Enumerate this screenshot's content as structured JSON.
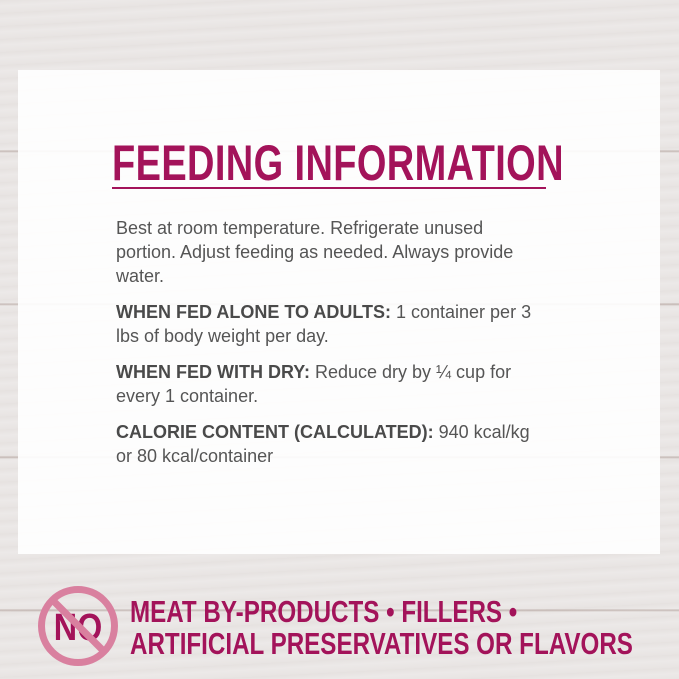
{
  "title": "FEEDING INFORMATION",
  "intro": "Best at room temperature. Refrigerate unused portion. Adjust feeding as needed. Always provide water.",
  "sections": [
    {
      "label": "WHEN FED ALONE TO ADULTS:",
      "text": " 1 container per 3 lbs of body weight per day."
    },
    {
      "label": "WHEN FED WITH DRY:",
      "text": " Reduce dry by ¼ cup for every 1 container."
    },
    {
      "label": "CALORIE CONTENT (CALCULATED):",
      "text": " 940 kcal/kg or 80 kcal/container"
    }
  ],
  "badge": {
    "text": "NO",
    "icon": "no-prohibition-icon"
  },
  "claims": {
    "line1": "MEAT BY-PRODUCTS • FILLERS •",
    "line2": "ARTIFICIAL PRESERVATIVES OR FLAVORS"
  },
  "colors": {
    "accent": "#a3135a",
    "badge": "#d9809f",
    "text": "#555555"
  }
}
